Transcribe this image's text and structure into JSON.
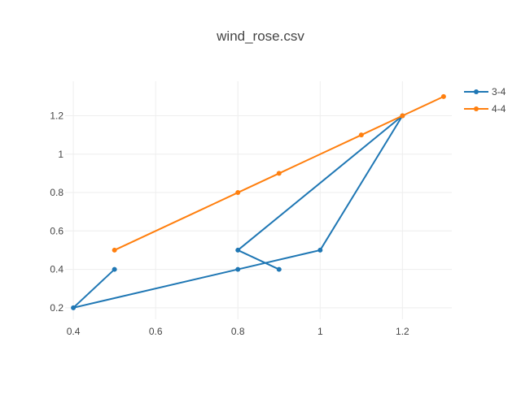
{
  "chart_data": {
    "type": "line",
    "title": "wind_rose.csv",
    "xlabel": "",
    "ylabel": "",
    "xlim": [
      0.38,
      1.32
    ],
    "ylim": [
      0.14,
      1.38
    ],
    "x_ticks": [
      0.4,
      0.6,
      0.8,
      1,
      1.2
    ],
    "x_tick_labels": [
      "0.4",
      "0.6",
      "0.8",
      "1",
      "1.2"
    ],
    "y_ticks": [
      0.2,
      0.4,
      0.6,
      0.8,
      1,
      1.2
    ],
    "y_tick_labels": [
      "0.2",
      "0.4",
      "0.6",
      "0.8",
      "1",
      "1.2"
    ],
    "grid": true,
    "legend_position": "top-right",
    "series": [
      {
        "name": "3-4",
        "color": "#1f77b4",
        "x": [
          0.9,
          0.8,
          1.2,
          1.0,
          0.8,
          0.4,
          0.5
        ],
        "y": [
          0.4,
          0.5,
          1.2,
          0.5,
          0.4,
          0.2,
          0.4
        ]
      },
      {
        "name": "4-4",
        "color": "#ff7f0e",
        "x": [
          0.5,
          0.8,
          0.9,
          1.1,
          1.2,
          1.3
        ],
        "y": [
          0.5,
          0.8,
          0.9,
          1.1,
          1.2,
          1.3
        ]
      }
    ]
  }
}
